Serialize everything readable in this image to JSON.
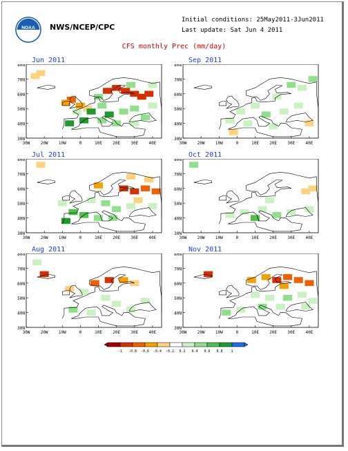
{
  "header": {
    "org": "NWS/NCEP/CPC",
    "initial_conditions": "Initial conditions: 25May2011-3Jun2011",
    "last_update": "Last update: Sat Jun 4 2011",
    "title": "CFS monthly Prec (mm/day)"
  },
  "logo": {
    "text": "NOAA",
    "colors": {
      "outer": "#1a5fb4",
      "inner": "#ffffff"
    }
  },
  "axes": {
    "lat_labels": [
      "80N",
      "70N",
      "60N",
      "50N",
      "40N",
      "30N"
    ],
    "lon_labels": [
      "30W",
      "20W",
      "10W",
      "0",
      "10E",
      "20E",
      "30E",
      "40E"
    ]
  },
  "panels": [
    {
      "title": "Jun 2011",
      "anomaly": [
        {
          "lon": -25,
          "lat": 72,
          "v": -0.35
        },
        {
          "lon": -22,
          "lat": 74,
          "v": -0.3
        },
        {
          "lon": -5,
          "lat": 56,
          "v": -0.6
        },
        {
          "lon": -8,
          "lat": 54,
          "v": -0.4
        },
        {
          "lon": 0,
          "lat": 52,
          "v": -0.5
        },
        {
          "lon": 4,
          "lat": 50,
          "v": -0.3
        },
        {
          "lon": 15,
          "lat": 62,
          "v": -0.9
        },
        {
          "lon": 20,
          "lat": 64,
          "v": -0.9
        },
        {
          "lon": 25,
          "lat": 62,
          "v": -0.8
        },
        {
          "lon": 30,
          "lat": 60,
          "v": -0.9
        },
        {
          "lon": 34,
          "lat": 58,
          "v": -0.9
        },
        {
          "lon": 38,
          "lat": 60,
          "v": -0.8
        },
        {
          "lon": 28,
          "lat": 66,
          "v": 0.5
        },
        {
          "lon": 40,
          "lat": 66,
          "v": 0.4
        },
        {
          "lon": 10,
          "lat": 58,
          "v": 0.5
        },
        {
          "lon": 12,
          "lat": 52,
          "v": 0.5
        },
        {
          "lon": 6,
          "lat": 48,
          "v": 0.9
        },
        {
          "lon": 16,
          "lat": 46,
          "v": 0.9
        },
        {
          "lon": 24,
          "lat": 48,
          "v": 0.6
        },
        {
          "lon": 30,
          "lat": 50,
          "v": 0.5
        },
        {
          "lon": -6,
          "lat": 40,
          "v": 0.9
        },
        {
          "lon": 2,
          "lat": 42,
          "v": 0.9
        },
        {
          "lon": 12,
          "lat": 42,
          "v": 0.5
        },
        {
          "lon": 20,
          "lat": 40,
          "v": 0.6
        },
        {
          "lon": 36,
          "lat": 44,
          "v": 0.6
        },
        {
          "lon": 40,
          "lat": 52,
          "v": 0.3
        },
        {
          "lon": 30,
          "lat": 40,
          "v": 0.3
        },
        {
          "lon": -2,
          "lat": 48,
          "v": 0.4
        }
      ]
    },
    {
      "title": "Sep 2011",
      "anomaly": [
        {
          "lon": 30,
          "lat": 66,
          "v": 0.5
        },
        {
          "lon": 36,
          "lat": 64,
          "v": 0.4
        },
        {
          "lon": 42,
          "lat": 70,
          "v": 0.5
        },
        {
          "lon": 22,
          "lat": 58,
          "v": 0.4
        },
        {
          "lon": 10,
          "lat": 52,
          "v": 0.4
        },
        {
          "lon": 2,
          "lat": 48,
          "v": 0.3
        },
        {
          "lon": 16,
          "lat": 46,
          "v": 0.5
        },
        {
          "lon": 26,
          "lat": 48,
          "v": 0.4
        },
        {
          "lon": 34,
          "lat": 52,
          "v": 0.3
        },
        {
          "lon": -4,
          "lat": 42,
          "v": 0.4
        },
        {
          "lon": 6,
          "lat": 40,
          "v": 0.3
        },
        {
          "lon": -2,
          "lat": 34,
          "v": -0.3
        },
        {
          "lon": 40,
          "lat": 40,
          "v": -0.3
        },
        {
          "lon": 20,
          "lat": 38,
          "v": 0.3
        }
      ]
    },
    {
      "title": "Jul 2011",
      "anomaly": [
        {
          "lon": -22,
          "lat": 76,
          "v": -0.3
        },
        {
          "lon": 10,
          "lat": 62,
          "v": -0.5
        },
        {
          "lon": 24,
          "lat": 60,
          "v": -0.8
        },
        {
          "lon": 30,
          "lat": 58,
          "v": -0.9
        },
        {
          "lon": 36,
          "lat": 60,
          "v": -0.7
        },
        {
          "lon": 42,
          "lat": 58,
          "v": -0.6
        },
        {
          "lon": 28,
          "lat": 68,
          "v": -0.3
        },
        {
          "lon": 38,
          "lat": 66,
          "v": -0.3
        },
        {
          "lon": 6,
          "lat": 52,
          "v": 0.4
        },
        {
          "lon": 14,
          "lat": 50,
          "v": 0.5
        },
        {
          "lon": 20,
          "lat": 46,
          "v": 0.6
        },
        {
          "lon": 28,
          "lat": 48,
          "v": 0.4
        },
        {
          "lon": -4,
          "lat": 44,
          "v": 0.7
        },
        {
          "lon": 2,
          "lat": 42,
          "v": 0.8
        },
        {
          "lon": 10,
          "lat": 40,
          "v": 0.6
        },
        {
          "lon": 18,
          "lat": 40,
          "v": 0.5
        },
        {
          "lon": -8,
          "lat": 38,
          "v": 0.9
        },
        {
          "lon": 32,
          "lat": 52,
          "v": -0.3
        },
        {
          "lon": 40,
          "lat": 48,
          "v": 0.3
        },
        {
          "lon": -10,
          "lat": 50,
          "v": 0.3
        }
      ]
    },
    {
      "title": "Oct 2011",
      "anomaly": [
        {
          "lon": -24,
          "lat": 76,
          "v": 0.5
        },
        {
          "lon": 38,
          "lat": 58,
          "v": -0.3
        },
        {
          "lon": 42,
          "lat": 60,
          "v": -0.3
        },
        {
          "lon": -4,
          "lat": 42,
          "v": 0.4
        },
        {
          "lon": 4,
          "lat": 44,
          "v": 0.3
        },
        {
          "lon": 14,
          "lat": 46,
          "v": 0.4
        },
        {
          "lon": 22,
          "lat": 42,
          "v": 0.6
        },
        {
          "lon": 30,
          "lat": 44,
          "v": 0.4
        },
        {
          "lon": 10,
          "lat": 40,
          "v": 0.8
        },
        {
          "lon": 40,
          "lat": 46,
          "v": 0.3
        },
        {
          "lon": 18,
          "lat": 52,
          "v": 0.3
        }
      ]
    },
    {
      "title": "Aug 2011",
      "anomaly": [
        {
          "lon": -24,
          "lat": 74,
          "v": 0.4
        },
        {
          "lon": -20,
          "lat": 66,
          "v": -0.9
        },
        {
          "lon": -6,
          "lat": 56,
          "v": -0.3
        },
        {
          "lon": 8,
          "lat": 60,
          "v": -0.6
        },
        {
          "lon": 16,
          "lat": 62,
          "v": -0.8
        },
        {
          "lon": 24,
          "lat": 62,
          "v": -0.5
        },
        {
          "lon": 30,
          "lat": 60,
          "v": -0.3
        },
        {
          "lon": 2,
          "lat": 54,
          "v": 0.3
        },
        {
          "lon": 14,
          "lat": 50,
          "v": 0.4
        },
        {
          "lon": 20,
          "lat": 46,
          "v": 0.4
        },
        {
          "lon": -4,
          "lat": 42,
          "v": 0.5
        },
        {
          "lon": 6,
          "lat": 40,
          "v": 0.4
        },
        {
          "lon": 28,
          "lat": 42,
          "v": 0.4
        },
        {
          "lon": 36,
          "lat": 48,
          "v": 0.3
        }
      ]
    },
    {
      "title": "Nov 2011",
      "anomaly": [
        {
          "lon": -16,
          "lat": 66,
          "v": -0.8
        },
        {
          "lon": 8,
          "lat": 62,
          "v": -0.4
        },
        {
          "lon": 16,
          "lat": 64,
          "v": -0.5
        },
        {
          "lon": 22,
          "lat": 62,
          "v": -0.8
        },
        {
          "lon": 28,
          "lat": 64,
          "v": -0.6
        },
        {
          "lon": 34,
          "lat": 62,
          "v": -0.7
        },
        {
          "lon": 40,
          "lat": 60,
          "v": -0.6
        },
        {
          "lon": 26,
          "lat": 58,
          "v": -0.4
        },
        {
          "lon": 10,
          "lat": 52,
          "v": 0.3
        },
        {
          "lon": 18,
          "lat": 50,
          "v": 0.4
        },
        {
          "lon": 28,
          "lat": 50,
          "v": 0.5
        },
        {
          "lon": 36,
          "lat": 52,
          "v": 0.4
        },
        {
          "lon": 14,
          "lat": 44,
          "v": 0.5
        },
        {
          "lon": 24,
          "lat": 44,
          "v": 0.4
        },
        {
          "lon": -6,
          "lat": 40,
          "v": 0.5
        },
        {
          "lon": 2,
          "lat": 42,
          "v": 0.3
        },
        {
          "lon": 38,
          "lat": 44,
          "v": 0.3
        },
        {
          "lon": 42,
          "lat": 48,
          "v": 0.3
        }
      ]
    }
  ],
  "colorbar": {
    "labels": [
      "-1",
      "-0.8",
      "-0.6",
      "-0.4",
      "-0.2",
      "0.2",
      "0.4",
      "0.6",
      "0.8",
      "1"
    ],
    "colors": [
      "#a50000",
      "#d73000",
      "#ef6000",
      "#f7a100",
      "#ffd280",
      "#ffffff",
      "#c8f2c0",
      "#8fe08a",
      "#4cc04a",
      "#1e9a2e",
      "#1e6ee6"
    ]
  }
}
